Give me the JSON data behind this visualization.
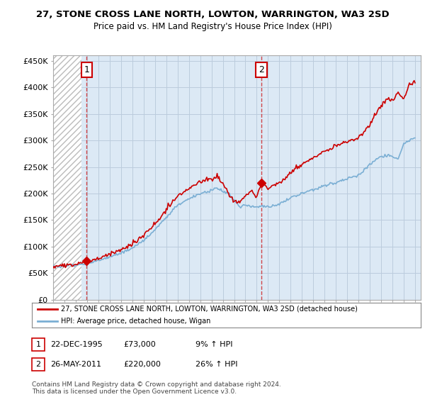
{
  "title": "27, STONE CROSS LANE NORTH, LOWTON, WARRINGTON, WA3 2SD",
  "subtitle": "Price paid vs. HM Land Registry's House Price Index (HPI)",
  "legend_line1": "27, STONE CROSS LANE NORTH, LOWTON, WARRINGTON, WA3 2SD (detached house)",
  "legend_line2": "HPI: Average price, detached house, Wigan",
  "annotation1_date": "22-DEC-1995",
  "annotation1_price": "£73,000",
  "annotation1_hpi": "9% ↑ HPI",
  "annotation2_date": "26-MAY-2011",
  "annotation2_price": "£220,000",
  "annotation2_hpi": "26% ↑ HPI",
  "footer": "Contains HM Land Registry data © Crown copyright and database right 2024.\nThis data is licensed under the Open Government Licence v3.0.",
  "ylim": [
    0,
    460000
  ],
  "yticks": [
    0,
    50000,
    100000,
    150000,
    200000,
    250000,
    300000,
    350000,
    400000,
    450000
  ],
  "ytick_labels": [
    "£0",
    "£50K",
    "£100K",
    "£150K",
    "£200K",
    "£250K",
    "£300K",
    "£350K",
    "£400K",
    "£450K"
  ],
  "price_color": "#cc0000",
  "hpi_color": "#7bafd4",
  "sale1_x": 1995.97,
  "sale1_y": 73000,
  "sale2_x": 2011.42,
  "sale2_y": 220000,
  "plot_bg_color": "#dce9f5",
  "hatch_color": "#cccccc",
  "grid_color": "#bbccdd",
  "annotation_box_color": "#cc0000",
  "xlim_left": 1993.0,
  "xlim_right": 2025.5,
  "hatch_end": 1995.5
}
